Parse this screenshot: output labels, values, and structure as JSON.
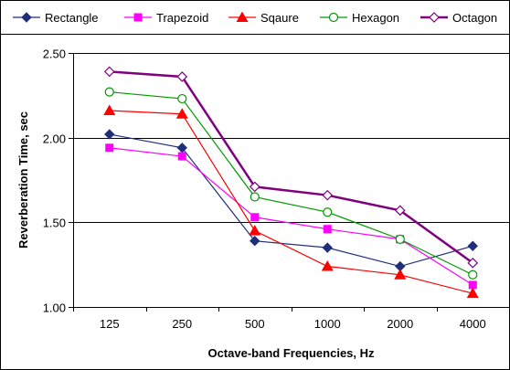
{
  "chart_data": {
    "type": "line",
    "title": "",
    "xlabel": "Octave-band Frequencies, Hz",
    "ylabel": "Reverberation Time, sec",
    "categories": [
      "125",
      "250",
      "500",
      "1000",
      "2000",
      "4000"
    ],
    "ylim": [
      1.0,
      2.5
    ],
    "yticks": [
      "1.00",
      "1.50",
      "2.00",
      "2.50"
    ],
    "grid": "horizontal",
    "legend_position": "top",
    "series": [
      {
        "name": "Rectangle",
        "color": "#1f2f7a",
        "marker": "diamond",
        "values": [
          2.02,
          1.94,
          1.39,
          1.35,
          1.24,
          1.36
        ]
      },
      {
        "name": "Trapezoid",
        "color": "#ff00ff",
        "marker": "square",
        "values": [
          1.94,
          1.89,
          1.53,
          1.46,
          1.4,
          1.13
        ]
      },
      {
        "name": "Sqaure",
        "color": "#ff0000",
        "marker": "triangle",
        "values": [
          2.16,
          2.14,
          1.45,
          1.24,
          1.19,
          1.08
        ]
      },
      {
        "name": "Hexagon",
        "color": "#009900",
        "marker": "circle-open",
        "values": [
          2.27,
          2.23,
          1.65,
          1.56,
          1.4,
          1.19
        ]
      },
      {
        "name": "Octagon",
        "color": "#800080",
        "marker": "diamond-open",
        "values": [
          2.39,
          2.36,
          1.71,
          1.66,
          1.57,
          1.26
        ]
      }
    ]
  }
}
